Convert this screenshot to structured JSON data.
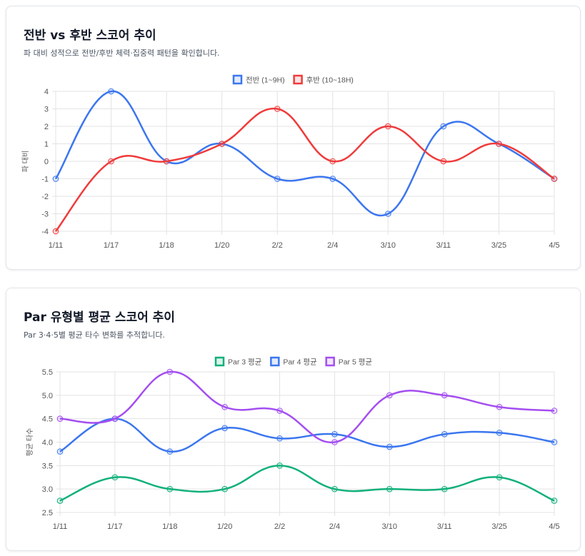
{
  "chart_data": [
    {
      "type": "line",
      "title": "전반 vs 후반 스코어 추이",
      "subtitle": "파 대비 성적으로 전반/후반 체력·집중력 패턴을 확인합니다.",
      "ylabel": "파 대비",
      "categories": [
        "1/11",
        "1/17",
        "1/18",
        "1/20",
        "2/2",
        "2/4",
        "3/10",
        "3/11",
        "3/25",
        "4/5"
      ],
      "yticks": [
        "4",
        "3",
        "2",
        "1",
        "0",
        "-1",
        "-2",
        "-3",
        "-4"
      ],
      "ylim": [
        -4,
        4
      ],
      "grid": true,
      "legend": "top",
      "series": [
        {
          "name": "전반 (1~9H)",
          "color": "#3b76ef",
          "values": [
            -1,
            4,
            0,
            1,
            -1,
            -1,
            -3,
            2,
            1,
            -1
          ]
        },
        {
          "name": "후반 (10~18H)",
          "color": "#ef3b3b",
          "values": [
            -4,
            0,
            0,
            1,
            3,
            0,
            2,
            0,
            1,
            -1
          ]
        }
      ]
    },
    {
      "type": "line",
      "title": "Par 유형별 평균 스코어 추이",
      "subtitle": "Par 3·4·5별 평균 타수 변화를 추적합니다.",
      "ylabel": "평균 타수",
      "categories": [
        "1/11",
        "1/17",
        "1/18",
        "1/20",
        "2/2",
        "2/4",
        "3/10",
        "3/11",
        "3/25",
        "4/5"
      ],
      "yticks": [
        "5.5",
        "5.0",
        "4.5",
        "4.0",
        "3.5",
        "3.0",
        "2.5"
      ],
      "ylim": [
        2.5,
        5.5
      ],
      "grid": true,
      "legend": "top",
      "series": [
        {
          "name": "Par 3 평균",
          "color": "#10b07a",
          "values": [
            2.75,
            3.25,
            3.0,
            3.0,
            3.5,
            3.0,
            3.0,
            3.0,
            3.25,
            2.75
          ]
        },
        {
          "name": "Par 4 평균",
          "color": "#3b76ef",
          "values": [
            3.8,
            4.5,
            3.8,
            4.3,
            4.08,
            4.17,
            3.9,
            4.17,
            4.2,
            4.0
          ]
        },
        {
          "name": "Par 5 평균",
          "color": "#a44ef0",
          "values": [
            4.5,
            4.5,
            5.5,
            4.75,
            4.67,
            4.0,
            5.0,
            5.0,
            4.75,
            4.67
          ]
        }
      ]
    }
  ]
}
